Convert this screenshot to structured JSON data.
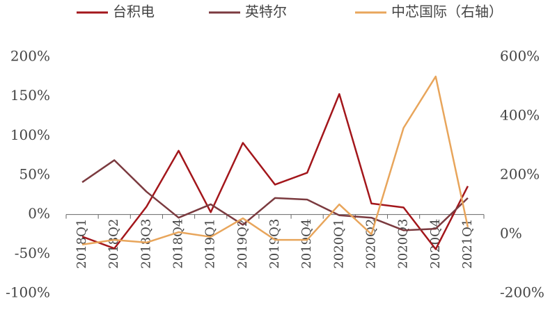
{
  "chart_data": {
    "type": "line",
    "categories": [
      "2018Q1",
      "2018Q2",
      "2018Q3",
      "2018Q4",
      "2019Q1",
      "2019Q2",
      "2019Q3",
      "2019Q4",
      "2020Q1",
      "2020Q2",
      "2020Q3",
      "2020Q4",
      "2021Q1"
    ],
    "series": [
      {
        "name": "台积电",
        "color": "#a3161b",
        "values": [
          -28,
          -43,
          10,
          81,
          3,
          91,
          38,
          53,
          153,
          14,
          9,
          -44,
          36
        ]
      },
      {
        "name": "英特尔",
        "color": "#7b3a3f",
        "values": [
          41,
          69,
          29,
          -4,
          13,
          -13,
          21,
          19,
          -1,
          -4,
          -20,
          -18,
          21
        ]
      },
      {
        "name": "中芯国际（右轴）",
        "color": "#e8a55b",
        "axis": "y2",
        "values": [
          -35,
          -19,
          -28,
          7,
          -9,
          54,
          -19,
          -19,
          101,
          0,
          360,
          534,
          24
        ]
      }
    ],
    "ylim": [
      -100,
      200
    ],
    "yticks": [
      {
        "value": -100,
        "label": "-100%"
      },
      {
        "value": -50,
        "label": "-50%"
      },
      {
        "value": 0,
        "label": "0%"
      },
      {
        "value": 50,
        "label": "50%"
      },
      {
        "value": 100,
        "label": "100%"
      },
      {
        "value": 150,
        "label": "150%"
      },
      {
        "value": 200,
        "label": "200%"
      }
    ],
    "y2lim": [
      -200,
      600
    ],
    "y2ticks": [
      {
        "value": -200,
        "label": "-200%"
      },
      {
        "value": 0,
        "label": "0%"
      },
      {
        "value": 200,
        "label": "200%"
      },
      {
        "value": 400,
        "label": "400%"
      },
      {
        "value": 600,
        "label": "600%"
      }
    ],
    "legend": "top"
  }
}
